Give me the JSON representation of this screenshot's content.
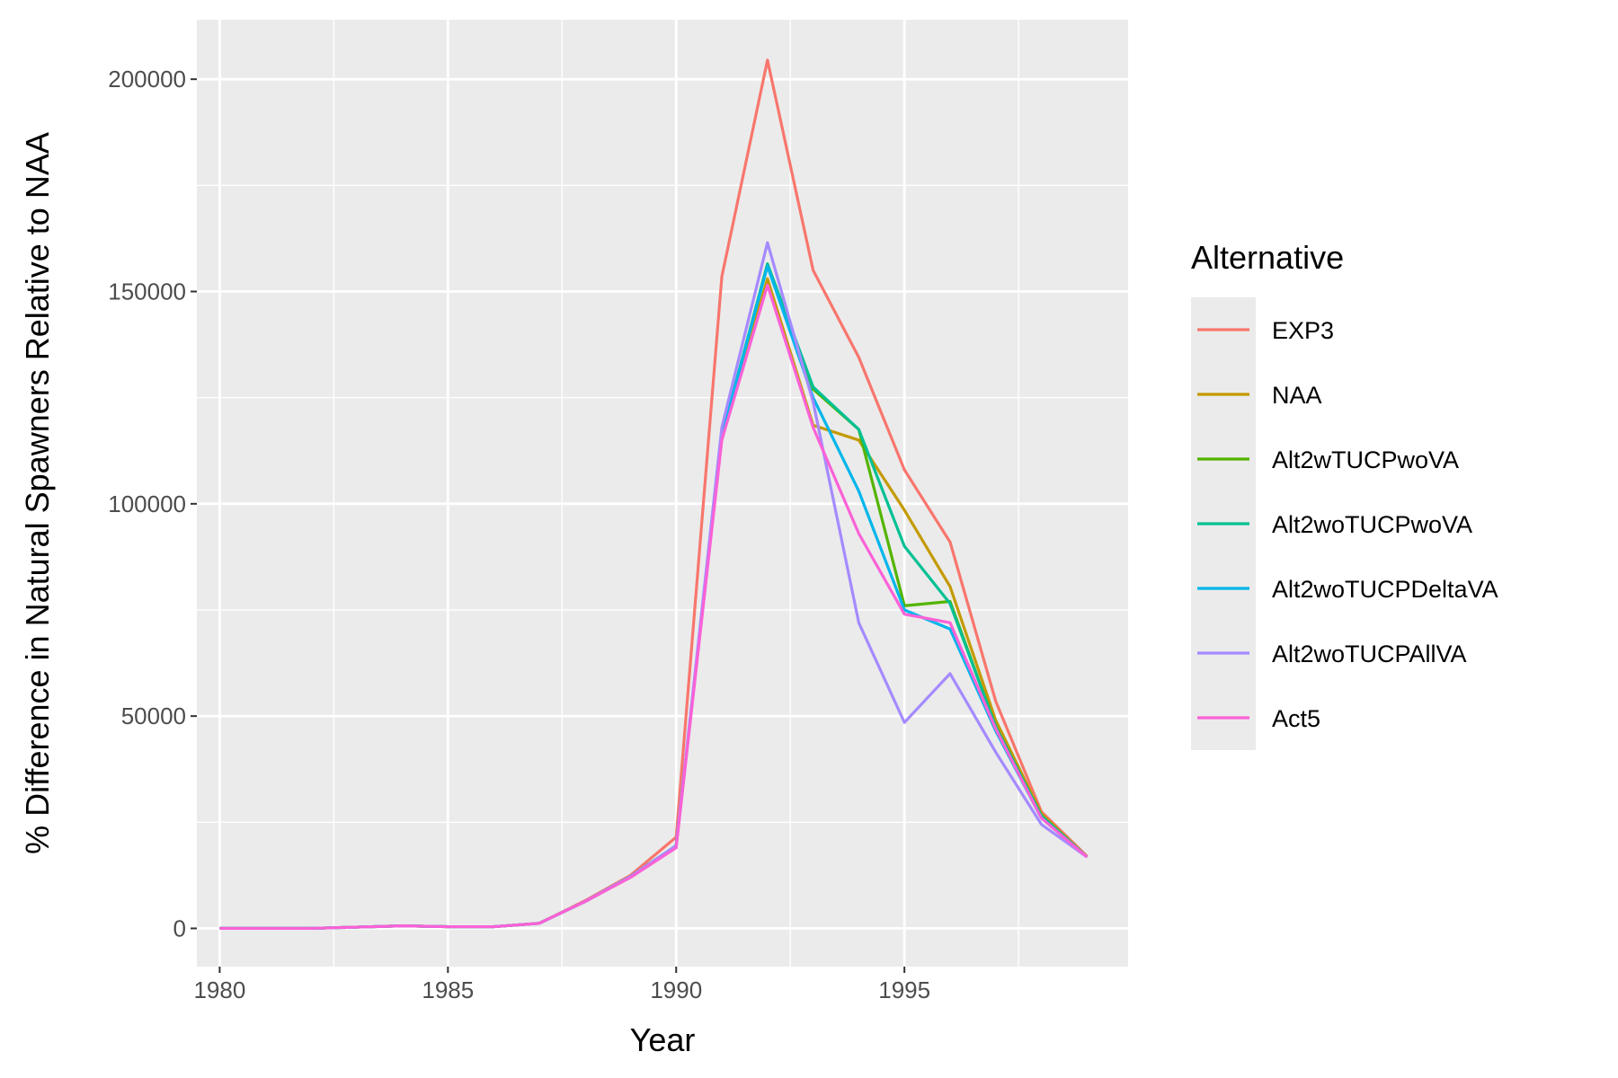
{
  "chart_data": {
    "type": "line",
    "xlabel": "Year",
    "ylabel": "% Difference in Natural Spawners Relative to NAA",
    "xlim": [
      1979.5,
      1999.9
    ],
    "ylim": [
      -9000,
      214000
    ],
    "x_ticks": [
      1980,
      1985,
      1990,
      1995
    ],
    "x_tick_labels": [
      "1980",
      "1985",
      "1990",
      "1995"
    ],
    "x_minor_ticks": [
      1982.5,
      1987.5,
      1992.5,
      1997.5
    ],
    "y_ticks": [
      0,
      50000,
      100000,
      150000,
      200000
    ],
    "y_tick_labels": [
      "0",
      "50000",
      "100000",
      "150000",
      "200000"
    ],
    "y_minor_ticks": [
      25000,
      75000,
      125000,
      175000
    ],
    "grid": true,
    "background": "#ebebeb",
    "legend": {
      "title": "Alternative",
      "placement": "right"
    },
    "x": [
      1980,
      1981,
      1982,
      1983,
      1984,
      1985,
      1986,
      1987,
      1988,
      1989,
      1990,
      1991,
      1992,
      1993,
      1994,
      1995,
      1996,
      1997,
      1998,
      1999
    ],
    "series": [
      {
        "name": "EXP3",
        "color": "#F8766D",
        "values": [
          0,
          0,
          0,
          300,
          600,
          400,
          400,
          1200,
          6500,
          12500,
          21500,
          153500,
          204500,
          155000,
          134500,
          108000,
          91000,
          53500,
          27500,
          17000
        ]
      },
      {
        "name": "NAA",
        "color": "#C49A00",
        "values": [
          0,
          0,
          0,
          300,
          600,
          400,
          400,
          1200,
          6300,
          12200,
          19500,
          116000,
          153000,
          118500,
          115000,
          98500,
          80500,
          49000,
          27000,
          16800
        ]
      },
      {
        "name": "Alt2wTUCPwoVA",
        "color": "#53B400",
        "values": [
          0,
          0,
          0,
          300,
          600,
          400,
          400,
          1200,
          6300,
          12200,
          19500,
          116000,
          156500,
          127000,
          117500,
          76000,
          77000,
          47500,
          26500,
          16800
        ]
      },
      {
        "name": "Alt2woTUCPwoVA",
        "color": "#00C094",
        "values": [
          0,
          0,
          0,
          300,
          600,
          400,
          400,
          1200,
          6300,
          12200,
          19500,
          116000,
          156500,
          127500,
          117500,
          90000,
          76500,
          47500,
          26500,
          16800
        ]
      },
      {
        "name": "Alt2woTUCPDeltaVA",
        "color": "#00B6EB",
        "values": [
          0,
          0,
          0,
          300,
          600,
          400,
          400,
          1200,
          6300,
          12200,
          19500,
          116000,
          156000,
          125000,
          103000,
          75000,
          70500,
          46500,
          26000,
          16800
        ]
      },
      {
        "name": "Alt2woTUCPAllVA",
        "color": "#A58AFF",
        "values": [
          0,
          0,
          0,
          300,
          600,
          400,
          400,
          1200,
          6300,
          12200,
          19500,
          118000,
          161500,
          124000,
          72000,
          48500,
          60000,
          41500,
          24500,
          16800
        ]
      },
      {
        "name": "Act5",
        "color": "#FB61D7",
        "values": [
          0,
          0,
          0,
          300,
          600,
          400,
          400,
          1200,
          6300,
          12000,
          19000,
          115000,
          151500,
          118000,
          93000,
          74000,
          72000,
          47000,
          26000,
          16800
        ]
      }
    ]
  }
}
